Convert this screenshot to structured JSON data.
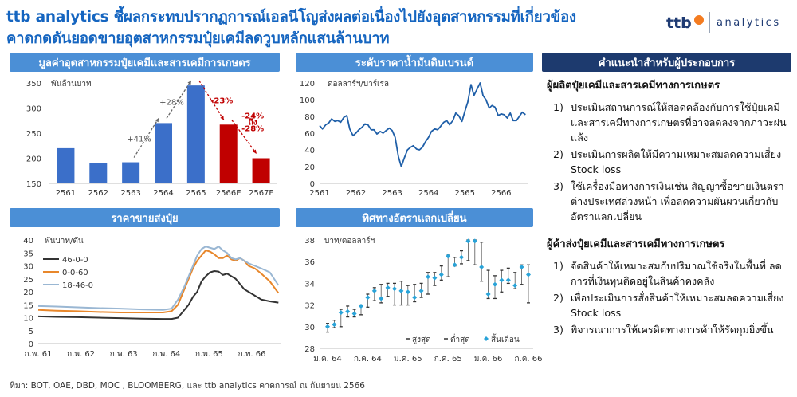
{
  "header": {
    "title_line1": "ttb analytics ชี้ผลกระทบปรากฏการณ์เอลนีโญส่งผลต่อเนื่องไปยังอุตสาหกรรมที่เกี่ยวข้อง",
    "title_line2": "คาดกดดันยอดขายอุตสาหกรรมปุ๋ยเคมีลดวูบหลักแสนล้านบาท",
    "logo_text": "analytics",
    "logo_mark": "ttb",
    "accent_color": "#1565c0"
  },
  "panels": {
    "bar_title": "มูลค่าอุตสาหกรรมปุ๋ยเคมีและสารเคมีการเกษตร",
    "oil_title": "ระดับราคาน้ำมันดิบเบรนด์",
    "fert_title": "ราคาขายส่งปุ๋ย",
    "fx_title": "ทิศทางอัตราแลกเปลี่ยน",
    "rec_title": "คำแนะนำสำหรับผู้ประกอบการ"
  },
  "recommendations": {
    "group1_title": "ผู้ผลิตปุ๋ยเคมีและสารเคมีทางการเกษตร",
    "group1_items": [
      {
        "num": "1)",
        "text": "ประเมินสถานการณ์ให้สอดคล้องกับการใช้ปุ๋ยเคมีและสารเคมีทางการเกษตรที่อาจลดลงจากภาวะฝนแล้ง"
      },
      {
        "num": "2)",
        "text": "ประเมินการผลิตให้มีความเหมาะสมลดความเสี่ยง Stock loss"
      },
      {
        "num": "3)",
        "text": "ใช้เครื่องมือทางการเงินเช่น สัญญาซื้อขายเงินตราต่างประเทศล่วงหน้า เพื่อลดความผันผวนเกี่ยวกับอัตราแลกเปลี่ยน"
      }
    ],
    "group2_title": "ผู้ค้าส่งปุ๋ยเคมีและสารเคมีทางการเกษตร",
    "group2_items": [
      {
        "num": "1)",
        "text": "จัดสินค้าให้เหมาะสมกับปริมาณใช้จริงในพื้นที่ ลดการที่เงินทุนติดอยู่ในสินค้าคงคลัง"
      },
      {
        "num": "2)",
        "text": "เพื่อประเมินการสั่งสินค้าให้เหมาะสมลดความเสี่ยง Stock loss"
      },
      {
        "num": "3)",
        "text": "พิจารณาการให้เครดิตทางการค้าให้รัดกุมยิ่งขึ้น"
      }
    ]
  },
  "source": "ที่มา: BOT, OAE, DBD, MOC , BLOOMBERG, และ ttb  analytics คาดการณ์ ณ กันยายน 2566",
  "chart_data": [
    {
      "id": "bar",
      "type": "bar",
      "title": "มูลค่าอุตสาหกรรมปุ๋ยเคมีและสารเคมีการเกษตร",
      "ylabel": "พันล้านบาท",
      "ylim": [
        150,
        350
      ],
      "yticks": [
        150,
        200,
        250,
        300,
        350
      ],
      "categories": [
        "2561",
        "2562",
        "2563",
        "2564",
        "2565",
        "2566E",
        "2567F"
      ],
      "values": [
        220,
        191,
        192,
        270,
        345,
        267,
        200
      ],
      "colors": [
        "#3b6fc9",
        "#3b6fc9",
        "#3b6fc9",
        "#3b6fc9",
        "#3b6fc9",
        "#c00000",
        "#c00000"
      ],
      "annotations": [
        {
          "text": "+41%",
          "color": "#555555"
        },
        {
          "text": "+28%",
          "color": "#555555"
        },
        {
          "text": "-23%",
          "color": "#c00000"
        },
        {
          "text": "-24%",
          "color": "#c00000"
        },
        {
          "text": "ถึง",
          "color": "#c00000"
        },
        {
          "text": "-28%",
          "color": "#c00000"
        }
      ]
    },
    {
      "id": "oil",
      "type": "line",
      "title": "ระดับราคาน้ำมันดิบเบรนด์",
      "ylabel": "ดอลลาร์ฯ/บาร์เรล",
      "ylim": [
        0,
        120
      ],
      "yticks": [
        0,
        20,
        40,
        60,
        80,
        100,
        120
      ],
      "xlim": [
        2561,
        2566.75
      ],
      "xticks": [
        "2561",
        "2562",
        "2563",
        "2564",
        "2565",
        "2566"
      ],
      "color": "#1f5fa8",
      "series": [
        {
          "x": [
            2561,
            2561.08,
            2561.17,
            2561.25,
            2561.33,
            2561.42,
            2561.5,
            2561.58,
            2561.67,
            2561.75,
            2561.83,
            2561.92,
            2562,
            2562.08,
            2562.17,
            2562.25,
            2562.33,
            2562.42,
            2562.5,
            2562.58,
            2562.67,
            2562.75,
            2562.83,
            2562.92,
            2563,
            2563.08,
            2563.17,
            2563.25,
            2563.33,
            2563.42,
            2563.5,
            2563.58,
            2563.67,
            2563.75,
            2563.83,
            2563.92,
            2564,
            2564.08,
            2564.17,
            2564.25,
            2564.33,
            2564.42,
            2564.5,
            2564.58,
            2564.67,
            2564.75,
            2564.83,
            2564.92,
            2565,
            2565.08,
            2565.17,
            2565.25,
            2565.33,
            2565.42,
            2565.5,
            2565.58,
            2565.67,
            2565.75,
            2565.83,
            2565.92,
            2566,
            2566.08,
            2566.17,
            2566.25,
            2566.33,
            2566.42,
            2566.5,
            2566.58,
            2566.67
          ],
          "y": [
            69,
            65,
            70,
            72,
            77,
            74,
            75,
            73,
            79,
            81,
            65,
            57,
            60,
            64,
            67,
            71,
            70,
            64,
            64,
            59,
            62,
            60,
            63,
            66,
            63,
            55,
            32,
            20,
            30,
            40,
            43,
            45,
            41,
            40,
            43,
            50,
            55,
            62,
            65,
            64,
            68,
            73,
            75,
            70,
            75,
            84,
            81,
            74,
            86,
            97,
            118,
            105,
            112,
            120,
            105,
            100,
            90,
            93,
            91,
            81,
            83,
            82,
            78,
            84,
            75,
            75,
            80,
            85,
            82
          ]
        }
      ]
    },
    {
      "id": "fert",
      "type": "line",
      "title": "ราคาขายส่งปุ๋ย",
      "ylabel": "พันบาท/ตัน",
      "ylim": [
        0,
        40
      ],
      "yticks": [
        0,
        5,
        10,
        15,
        20,
        25,
        30,
        35,
        40
      ],
      "xlim": [
        2561.08,
        2566.75
      ],
      "xticks": [
        "ก.พ. 61",
        "ก.พ. 62",
        "ก.พ. 63",
        "ก.พ. 64",
        "ก.พ. 65",
        "ก.พ. 66"
      ],
      "legend": "top-left",
      "series": [
        {
          "name": "46-0-0",
          "color": "#333333",
          "x": [
            2561.08,
            2561.5,
            2562,
            2562.5,
            2563,
            2563.5,
            2564,
            2564.2,
            2564.35,
            2564.5,
            2564.6,
            2564.7,
            2564.8,
            2564.9,
            2565,
            2565.1,
            2565.2,
            2565.3,
            2565.4,
            2565.5,
            2565.6,
            2565.7,
            2565.8,
            2565.9,
            2566,
            2566.15,
            2566.3,
            2566.5,
            2566.7
          ],
          "y": [
            10.5,
            10.3,
            10.2,
            10,
            9.8,
            9.6,
            9.5,
            9.5,
            10,
            13,
            15,
            18,
            20,
            24,
            26,
            27.5,
            28,
            27.8,
            26.5,
            27,
            26,
            25,
            23,
            21,
            20,
            18.5,
            17,
            16.3,
            15.8
          ]
        },
        {
          "name": "0-0-60",
          "color": "#e8872b",
          "x": [
            2561.08,
            2561.5,
            2562,
            2562.5,
            2563,
            2563.5,
            2564,
            2564.2,
            2564.35,
            2564.5,
            2564.6,
            2564.7,
            2564.8,
            2564.9,
            2565,
            2565.1,
            2565.2,
            2565.3,
            2565.4,
            2565.5,
            2565.6,
            2565.7,
            2565.8,
            2565.9,
            2566,
            2566.15,
            2566.3,
            2566.5,
            2566.7
          ],
          "y": [
            13,
            12.7,
            12.5,
            12.2,
            12,
            12,
            12,
            12.5,
            15,
            21,
            25,
            29,
            32,
            34,
            36,
            35.5,
            34.5,
            33,
            33,
            34,
            32.5,
            32,
            33,
            32,
            30,
            29,
            27,
            24,
            19.5
          ]
        },
        {
          "name": "18-46-0",
          "color": "#9ab7d3",
          "x": [
            2561.08,
            2561.5,
            2562,
            2562.5,
            2563,
            2563.5,
            2564,
            2564.2,
            2564.35,
            2564.5,
            2564.6,
            2564.7,
            2564.8,
            2564.9,
            2565,
            2565.1,
            2565.2,
            2565.3,
            2565.4,
            2565.5,
            2565.6,
            2565.7,
            2565.8,
            2565.9,
            2566,
            2566.15,
            2566.3,
            2566.5,
            2566.7
          ],
          "y": [
            14.5,
            14.3,
            14,
            13.7,
            13.5,
            13.2,
            13,
            13.5,
            17,
            22,
            26,
            30,
            34,
            36.5,
            37.5,
            37,
            36.5,
            37.5,
            36,
            35,
            33,
            32.5,
            33,
            32,
            31,
            30,
            29,
            27.5,
            22.5
          ]
        }
      ]
    },
    {
      "id": "fx",
      "type": "scatter",
      "title": "ทิศทางอัตราแลกเปลี่ยน",
      "ylabel": "บาท/ดอลลาร์ฯ",
      "ylim": [
        28,
        38
      ],
      "yticks": [
        28,
        30,
        32,
        34,
        36,
        38
      ],
      "xticks": [
        "ม.ค. 64",
        "ม.ค. 65",
        "ม.ค. 66",
        "ก.ค. 66"
      ],
      "xtick_positions": [
        0,
        12,
        24,
        30
      ],
      "xtick_extra": [
        {
          "label": "ก.ค. 64",
          "pos": 6
        },
        {
          "label": "ก.ค. 65",
          "pos": 18
        }
      ],
      "legend": [
        "สูงสุด",
        "ต่ำสุด",
        "สิ้นเดือน"
      ],
      "marker_color": "#29a3d8",
      "series": [
        {
          "name": "สิ้นเดือน",
          "x": [
            0,
            1,
            2,
            3,
            4,
            5,
            6,
            7,
            8,
            9,
            10,
            11,
            12,
            13,
            14,
            15,
            16,
            17,
            18,
            19,
            20,
            21,
            22,
            23,
            24,
            25,
            26,
            27,
            28,
            29,
            30
          ],
          "y": [
            30.0,
            30.2,
            31.3,
            31.4,
            31.2,
            31.9,
            32.7,
            33.3,
            32.6,
            33.6,
            33.5,
            33.3,
            33.2,
            32.7,
            33.3,
            34.6,
            34.5,
            34.8,
            36.5,
            35.7,
            36.4,
            37.9,
            37.9,
            35.5,
            33.0,
            33.9,
            34.3,
            34.3,
            33.8,
            35.5,
            34.8
          ],
          "high": [
            30.3,
            30.6,
            31.6,
            31.9,
            31.6,
            32.0,
            33.0,
            33.6,
            33.9,
            34.0,
            34.0,
            34.2,
            33.8,
            33.9,
            34.0,
            35.0,
            35.0,
            35.6,
            36.7,
            36.4,
            37.0,
            38.0,
            38.0,
            37.8,
            35.2,
            34.7,
            35.2,
            35.4,
            35.0,
            35.7,
            35.7
          ],
          "low": [
            29.5,
            29.9,
            30.0,
            30.9,
            30.9,
            31.1,
            31.8,
            32.4,
            32.2,
            32.8,
            32.0,
            32.0,
            32.0,
            32.3,
            32.7,
            33.0,
            33.8,
            34.3,
            34.6,
            35.6,
            35.8,
            36.1,
            35.7,
            34.2,
            32.6,
            32.6,
            33.2,
            34.0,
            33.5,
            33.9,
            32.2
          ]
        }
      ]
    }
  ]
}
